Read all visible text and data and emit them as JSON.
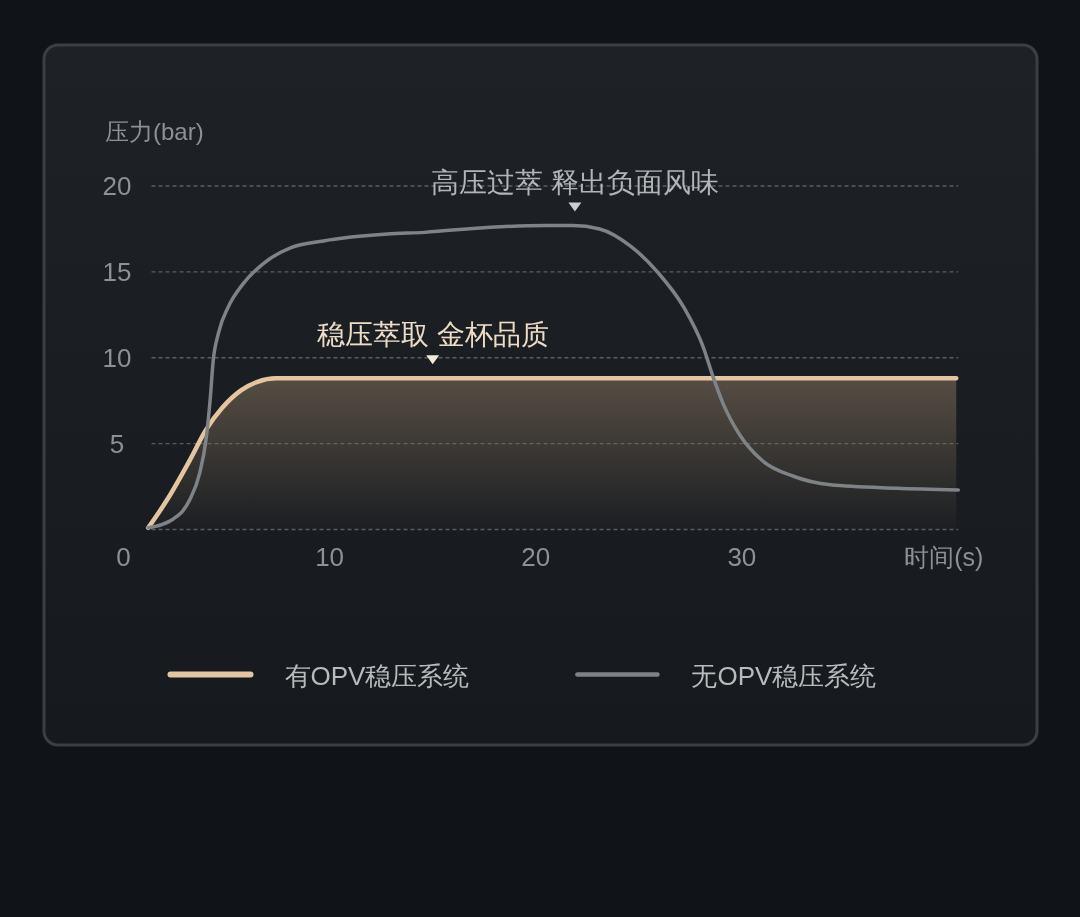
{
  "chart_data": {
    "type": "line",
    "xlabel": "时间(s)",
    "ylabel": "压力(bar)",
    "xlim": [
      0,
      40.5
    ],
    "ylim": [
      0,
      20
    ],
    "xticks": [
      0,
      10,
      20,
      30
    ],
    "yticks": [
      {
        "value": 0,
        "label": null
      },
      5,
      10,
      15,
      20
    ],
    "grid": "y",
    "legend": "bottom",
    "marker": "none",
    "line_style": "solid",
    "series": [
      {
        "name": "有OPV稳压系统",
        "type": "area",
        "color": "#e3c6a0",
        "x": [
          1.2,
          2.1,
          3.2,
          4.0,
          4.8,
          5.7,
          6.5,
          7.4,
          40.4
        ],
        "values": [
          0.1,
          1.7,
          4.0,
          5.8,
          7.1,
          8.1,
          8.6,
          8.8,
          8.8
        ]
      },
      {
        "name": "无OPV稳压系统",
        "type": "line",
        "color": "#7e8387",
        "x": [
          1.2,
          2.4,
          3.2,
          3.7,
          4.0,
          4.2,
          4.35,
          4.6,
          5.1,
          5.8,
          6.8,
          8.1,
          9.7,
          12.8,
          14.6,
          17.8,
          20.5,
          21.8,
          23.1,
          24.6,
          25.9,
          27.2,
          28.1,
          28.6,
          29.1,
          29.9,
          31.0,
          32.5,
          34.3,
          37.5,
          40.5
        ],
        "values": [
          0.1,
          0.6,
          1.7,
          3.3,
          5.2,
          7.5,
          9.8,
          11.4,
          13.0,
          14.3,
          15.5,
          16.4,
          16.8,
          17.2,
          17.3,
          17.6,
          17.7,
          17.7,
          17.5,
          16.5,
          15.0,
          12.9,
          10.7,
          8.9,
          7.3,
          5.5,
          4.0,
          3.1,
          2.6,
          2.4,
          2.3
        ]
      }
    ],
    "annotations": [
      {
        "text": "稳压萃取 金杯品质",
        "x": 15.0,
        "y": 8.8
      },
      {
        "text": "高压过萃 释出负面风味",
        "x": 21.9,
        "y": 17.7
      }
    ]
  }
}
